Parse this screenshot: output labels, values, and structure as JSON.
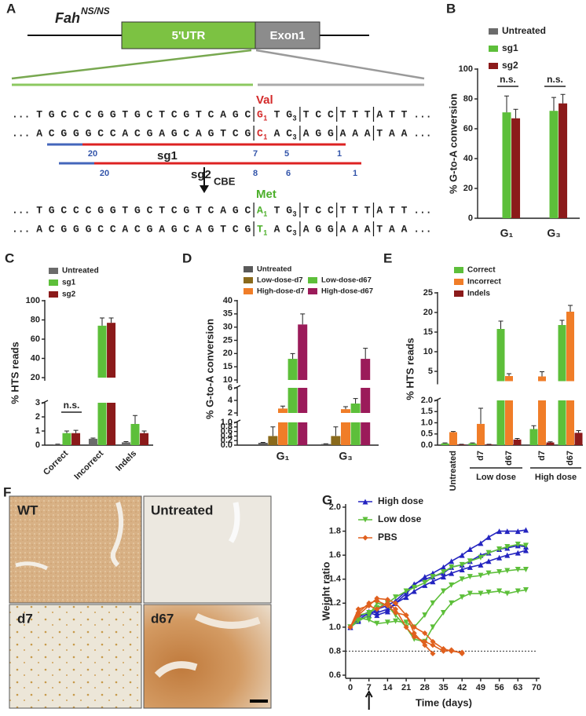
{
  "diagram": {
    "label": "A",
    "title": "Fah",
    "title_sup": "NS/NS",
    "boxes": [
      "5'UTR",
      "Exon1"
    ],
    "codon_labels": [
      "Val",
      "Met"
    ],
    "rows": [
      [
        {
          "text": "... T G C C C G G T G C T C G T C A G C"
        },
        {
          "text": "G",
          "sub": "1",
          "color": "#d42a2a"
        },
        {
          "text": "T G",
          "sub": "3"
        },
        {
          "text": "T C C"
        },
        {
          "text": "T T T"
        },
        {
          "text": "A T T ..."
        }
      ],
      [
        {
          "text": "... A C G G G C C A C G A G C A G T C G"
        },
        {
          "text": "C",
          "sub": "1",
          "color": "#d42a2a"
        },
        {
          "text": "A C",
          "sub": "3"
        },
        {
          "text": "A G G"
        },
        {
          "text": "A A A"
        },
        {
          "text": "T A A ..."
        }
      ],
      [
        {
          "text": "... T G C C C G G T G C T C G T C A G C"
        },
        {
          "text": "A",
          "sub": "1",
          "color": "#4caf2a"
        },
        {
          "text": "T G",
          "sub": "3"
        },
        {
          "text": "T C C"
        },
        {
          "text": "T T T"
        },
        {
          "text": "A T T ..."
        }
      ],
      [
        {
          "text": "... A C G G G C C A C G A G C A G T C G"
        },
        {
          "text": "T",
          "sub": "1",
          "color": "#4caf2a"
        },
        {
          "text": "A C",
          "sub": "3"
        },
        {
          "text": "A G G"
        },
        {
          "text": "A A A"
        },
        {
          "text": "T A A ..."
        }
      ]
    ],
    "guides": [
      {
        "name": "sg1",
        "numbers": [
          "20",
          "7",
          "5",
          "1"
        ]
      },
      {
        "name": "sg2",
        "numbers": [
          "20",
          "8",
          "6",
          "1"
        ]
      }
    ],
    "enzyme": "CBE"
  },
  "images": {
    "label": "F",
    "tiles": [
      "WT",
      "Untreated",
      "d7",
      "d67"
    ]
  },
  "chart_data": [
    {
      "panel": "B",
      "type": "bar",
      "ylabel": "% G-to-A conversion",
      "categories": [
        "G₁",
        "G₃"
      ],
      "series": [
        {
          "name": "Untreated",
          "color": "#6b6b6b",
          "values": [
            0,
            0
          ]
        },
        {
          "name": "sg1",
          "color": "#5dbf3a",
          "values": [
            71,
            72
          ],
          "errors": [
            11,
            9
          ]
        },
        {
          "name": "sg2",
          "color": "#8b1a1a",
          "values": [
            67,
            77
          ],
          "errors": [
            6,
            6
          ]
        }
      ],
      "ylim": [
        0,
        100
      ],
      "yticks": [
        0,
        20,
        40,
        60,
        80,
        100
      ],
      "annotations": [
        "n.s.",
        "n.s."
      ]
    },
    {
      "panel": "C",
      "type": "bar",
      "ylabel": "% HTS reads",
      "categories": [
        "Correct",
        "Incorrect",
        "Indels"
      ],
      "series": [
        {
          "name": "Untreated",
          "color": "#6b6b6b",
          "values": [
            0.05,
            0.45,
            0.2
          ],
          "errors": [
            0.02,
            0.05,
            0.05
          ]
        },
        {
          "name": "sg1",
          "color": "#5dbf3a",
          "values": [
            0.85,
            74,
            1.5
          ],
          "errors": [
            0.15,
            8,
            0.6
          ]
        },
        {
          "name": "sg2",
          "color": "#8b1a1a",
          "values": [
            0.85,
            77,
            0.85
          ],
          "errors": [
            0.2,
            5,
            0.15
          ]
        }
      ],
      "y_segments": [
        {
          "ylim": [
            0,
            3
          ],
          "yticks": [
            0,
            1,
            2,
            3
          ]
        },
        {
          "ylim": [
            20,
            100
          ],
          "yticks": [
            20,
            40,
            60,
            80,
            100
          ]
        }
      ],
      "annotations": [
        "n.s."
      ]
    },
    {
      "panel": "D",
      "type": "bar",
      "ylabel": "% G-to-A conversion",
      "categories": [
        "G₁",
        "G₃"
      ],
      "series": [
        {
          "name": "Untreated",
          "color": "#5a5a5a",
          "values": [
            0.1,
            0.05
          ],
          "errors": [
            0.02,
            0.01
          ]
        },
        {
          "name": "Low-dose-d7",
          "color": "#8a6a1c",
          "values": [
            0.4,
            0.4
          ],
          "errors": [
            0.4,
            0.4
          ]
        },
        {
          "name": "High-dose-d7",
          "color": "#f07d28",
          "values": [
            2.7,
            2.6
          ],
          "errors": [
            0.4,
            0.4
          ]
        },
        {
          "name": "Low-dose-d67",
          "color": "#5dbf3a",
          "values": [
            18,
            3.5
          ],
          "errors": [
            2,
            0.8
          ]
        },
        {
          "name": "High-dose-d67",
          "color": "#9b1b5a",
          "values": [
            31,
            18
          ],
          "errors": [
            4,
            4
          ]
        }
      ],
      "y_segments": [
        {
          "ylim": [
            0,
            1
          ],
          "yticks": [
            {
              "value": 0,
              "label": "0.0"
            },
            0.2,
            0.4,
            0.6,
            0.8,
            {
              "value": 1,
              "label": "1.0"
            }
          ]
        },
        {
          "ylim": [
            2,
            6
          ],
          "yticks": [
            2,
            4,
            6
          ]
        },
        {
          "ylim": [
            10,
            40
          ],
          "yticks": [
            10,
            15,
            20,
            25,
            30,
            35,
            40
          ]
        }
      ]
    },
    {
      "panel": "E",
      "type": "bar",
      "ylabel": "% HTS reads",
      "categories": [
        "Untreated",
        "d7",
        "d67",
        "d7",
        "d67"
      ],
      "group_labels": [
        "Low dose",
        "High dose"
      ],
      "series": [
        {
          "name": "Correct",
          "color": "#5dbf3a",
          "values": [
            0.08,
            0.08,
            15.8,
            0.72,
            16.8
          ],
          "errors": [
            0.02,
            0.02,
            2,
            0.15,
            1.2
          ]
        },
        {
          "name": "Incorrect",
          "color": "#f07d28",
          "values": [
            0.58,
            0.95,
            3.8,
            3.7,
            20.2
          ],
          "errors": [
            0.03,
            0.7,
            0.6,
            1.2,
            1.6
          ]
        },
        {
          "name": "Indels",
          "color": "#8b1a1a",
          "values": [
            0.03,
            0.03,
            0.25,
            0.12,
            0.55
          ],
          "errors": [
            0.01,
            0.01,
            0.05,
            0.03,
            0.1
          ]
        }
      ],
      "y_segments": [
        {
          "ylim": [
            0,
            2
          ],
          "yticks": [
            {
              "value": 0,
              "label": "0.0"
            },
            0.5,
            {
              "value": 1,
              "label": "1.0"
            },
            1.5,
            {
              "value": 2,
              "label": "2.0"
            }
          ]
        },
        {
          "ylim": [
            2.5,
            25
          ],
          "yticks": [
            5,
            10,
            15,
            20,
            25
          ]
        }
      ]
    },
    {
      "panel": "G",
      "type": "line",
      "ylabel": "Weight ratio",
      "xlabel": "Time (days)",
      "x": [
        0,
        3,
        7,
        10,
        14,
        17,
        21,
        24,
        28,
        31,
        35,
        38,
        42,
        45,
        49,
        52,
        56,
        59,
        63,
        66
      ],
      "series": [
        {
          "name": "High dose",
          "color": "#2424c0",
          "marker": "triangle-up",
          "values": [
            [
              1.0,
              1.08,
              1.13,
              1.12,
              1.15,
              1.2,
              1.28,
              1.35,
              1.42,
              1.45,
              1.5,
              1.55,
              1.6,
              1.65,
              1.7,
              1.75,
              1.8,
              1.8,
              1.8,
              1.81
            ],
            [
              1.0,
              1.05,
              1.1,
              1.15,
              1.18,
              1.22,
              1.3,
              1.36,
              1.4,
              1.42,
              1.45,
              1.5,
              1.52,
              1.55,
              1.6,
              1.62,
              1.65,
              1.66,
              1.68,
              1.67
            ],
            [
              1.0,
              1.06,
              1.12,
              1.1,
              1.13,
              1.2,
              1.25,
              1.3,
              1.35,
              1.38,
              1.42,
              1.45,
              1.48,
              1.5,
              1.52,
              1.55,
              1.58,
              1.6,
              1.62,
              1.64
            ]
          ]
        },
        {
          "name": "Low dose",
          "color": "#5dbf3a",
          "marker": "triangle-down",
          "values": [
            [
              1.0,
              1.1,
              1.12,
              1.16,
              1.2,
              1.25,
              1.3,
              1.33,
              1.37,
              1.42,
              1.46,
              1.5,
              1.52,
              1.55,
              1.58,
              1.62,
              1.65,
              1.67,
              1.69,
              1.68
            ],
            [
              1.0,
              1.08,
              1.06,
              1.03,
              1.04,
              1.05,
              1.04,
              1.0,
              1.1,
              1.2,
              1.3,
              1.35,
              1.4,
              1.42,
              1.43,
              1.45,
              1.46,
              1.47,
              1.48,
              1.48
            ],
            [
              1.0,
              1.05,
              1.1,
              1.2,
              1.18,
              1.1,
              1.0,
              0.9,
              0.88,
              1.0,
              1.12,
              1.2,
              1.25,
              1.28,
              1.28,
              1.29,
              1.3,
              1.28,
              1.3,
              1.31
            ]
          ]
        },
        {
          "name": "PBS",
          "color": "#e0601e",
          "marker": "diamond",
          "values": [
            [
              1.0,
              1.12,
              1.2,
              1.22,
              1.18,
              1.12,
              1.1,
              1.0,
              0.95,
              0.88,
              0.82,
              0.8,
              0.79,
              null,
              null,
              null,
              null,
              null,
              null,
              null
            ],
            [
              1.0,
              1.1,
              1.18,
              1.24,
              1.23,
              1.2,
              1.1,
              0.95,
              0.85,
              0.78,
              null,
              null,
              null,
              null,
              null,
              null,
              null,
              null,
              null,
              null
            ],
            [
              1.0,
              1.15,
              1.18,
              1.15,
              1.2,
              1.15,
              1.0,
              0.92,
              0.88,
              0.85,
              0.8,
              0.81,
              0.78,
              null,
              null,
              null,
              null,
              null,
              null,
              null
            ]
          ]
        }
      ],
      "xlim": [
        0,
        70
      ],
      "xticks": [
        0,
        7,
        14,
        21,
        28,
        35,
        42,
        49,
        56,
        63,
        70
      ],
      "ylim": [
        0.6,
        2.0
      ],
      "yticks": [
        0.6,
        0.8,
        {
          "value": 1,
          "label": "1.0"
        },
        1.2,
        1.4,
        1.6,
        1.8,
        {
          "value": 2,
          "label": "2.0"
        }
      ],
      "reference_line": 0.8
    }
  ]
}
